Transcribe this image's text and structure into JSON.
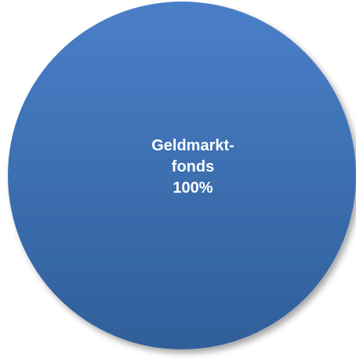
{
  "chart_data": {
    "type": "pie",
    "title": "",
    "slices": [
      {
        "label_lines": [
          "Geldmarkt-",
          "fonds",
          "100%"
        ],
        "value": 100,
        "percent": 100,
        "color_top": "#4a7fc8",
        "color_bottom": "#2f5f9a"
      }
    ],
    "legend": "none"
  }
}
